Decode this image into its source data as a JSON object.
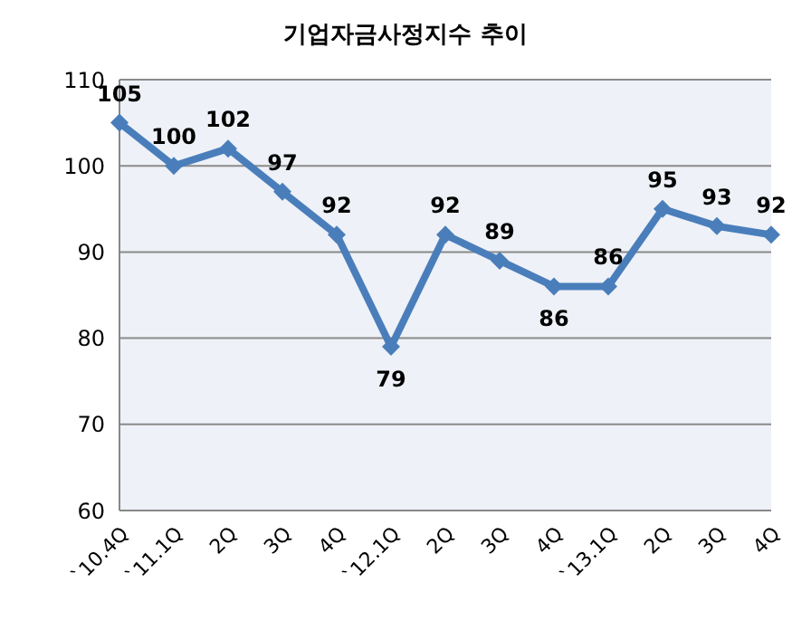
{
  "chart_data": {
    "type": "line",
    "title": "기업자금사정지수 추이",
    "categories": [
      "`10.4Q",
      "`11.1Q",
      "2Q",
      "3Q",
      "4Q",
      "`12.1Q",
      "2Q",
      "3Q",
      "4Q",
      "`13.1Q",
      "2Q",
      "3Q",
      "4Q"
    ],
    "series": [
      {
        "color": "#4a7ebb",
        "values": [
          105,
          100,
          102,
          97,
          92,
          79,
          92,
          89,
          86,
          86,
          95,
          93,
          92
        ]
      }
    ],
    "ylim": [
      60,
      110
    ],
    "yticks": [
      60,
      70,
      80,
      90,
      100,
      110
    ],
    "grid": "y",
    "marker": "diamond",
    "line_style": "solid",
    "data_labels": true,
    "legend": false
  }
}
